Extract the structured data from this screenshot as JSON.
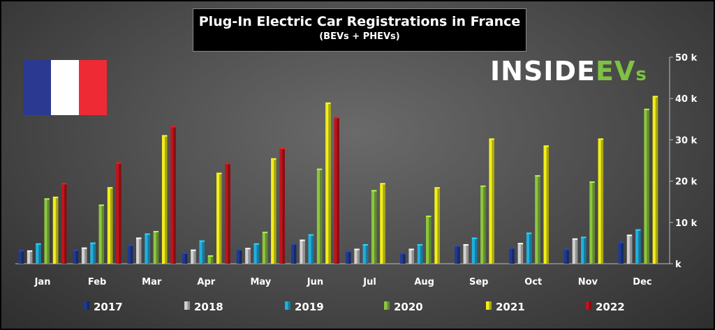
{
  "chart_data": {
    "type": "bar",
    "title": "Plug-In Electric Car Registrations in France",
    "subtitle": "(BEVs + PHEVs)",
    "categories": [
      "Jan",
      "Feb",
      "Mar",
      "Apr",
      "May",
      "Jun",
      "Jul",
      "Aug",
      "Sep",
      "Oct",
      "Nov",
      "Dec"
    ],
    "ylim": [
      0,
      50000
    ],
    "y_ticks": [
      {
        "value": 0,
        "label": "k"
      },
      {
        "value": 10000,
        "label": "10 k"
      },
      {
        "value": 20000,
        "label": "20 k"
      },
      {
        "value": 30000,
        "label": "30 k"
      },
      {
        "value": 40000,
        "label": "40 k"
      },
      {
        "value": 50000,
        "label": "50 k"
      }
    ],
    "y_axis_position": "right",
    "grid": false,
    "legend_position": "bottom",
    "series": [
      {
        "name": "2017",
        "color": "#1f3a93",
        "values": [
          3000,
          3100,
          4300,
          2400,
          3200,
          4600,
          2800,
          2300,
          4100,
          3600,
          3300,
          5000
        ]
      },
      {
        "name": "2018",
        "color": "#d0d0d0",
        "values": [
          2900,
          3600,
          6000,
          3100,
          3500,
          5500,
          3300,
          3300,
          4400,
          4700,
          5800,
          6700
        ]
      },
      {
        "name": "2019",
        "color": "#20b0e0",
        "values": [
          4600,
          4800,
          7000,
          5300,
          4600,
          6800,
          4400,
          4400,
          6000,
          7200,
          6200,
          8000
        ]
      },
      {
        "name": "2020",
        "color": "#8cc63f",
        "values": [
          15500,
          14000,
          7600,
          1700,
          7400,
          22700,
          17500,
          11300,
          18600,
          21100,
          19600,
          37200
        ]
      },
      {
        "name": "2021",
        "color": "#f2ee1a",
        "values": [
          15900,
          18200,
          30800,
          21700,
          25200,
          38700,
          19200,
          18200,
          30000,
          28300,
          30000,
          40300
        ]
      },
      {
        "name": "2022",
        "color": "#c0141b",
        "values": [
          19200,
          24200,
          33000,
          24100,
          27700,
          35200,
          null,
          null,
          null,
          null,
          null,
          null
        ]
      }
    ]
  },
  "logo": {
    "part1": "INSIDE",
    "part2": "EV",
    "part3": "s"
  },
  "flag": {
    "colors": [
      "#2b3990",
      "#ffffff",
      "#ee2a35"
    ]
  }
}
